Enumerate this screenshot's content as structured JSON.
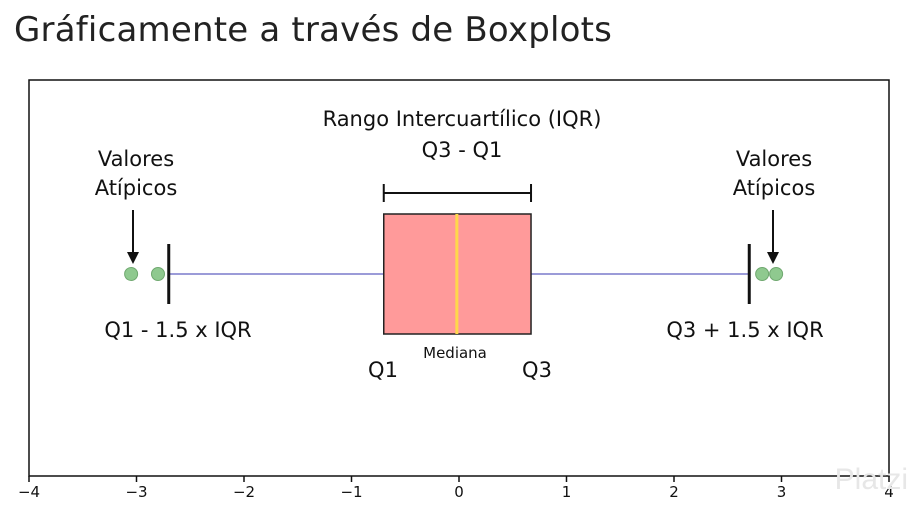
{
  "title": "Gráficamente a través de Boxplots",
  "labels": {
    "iqr_line1": "Rango Intercuartílico (IQR)",
    "iqr_line2": "Q3 - Q1",
    "outliers_left_1": "Valores",
    "outliers_left_2": "Atípicos",
    "outliers_right_1": "Valores",
    "outliers_right_2": "Atípicos",
    "lower_fence": "Q1 - 1.5 x IQR",
    "upper_fence": "Q3 + 1.5 x IQR",
    "median": "Mediana",
    "q1": "Q1",
    "q3": "Q3"
  },
  "axis": {
    "ticks": [
      "−4",
      "−3",
      "−2",
      "−1",
      "0",
      "1",
      "2",
      "3",
      "4"
    ]
  },
  "boxplot": {
    "q1": -0.7,
    "median": -0.02,
    "q3": 0.67,
    "lower_whisker": -2.7,
    "upper_whisker": 2.7,
    "outliers": [
      -3.05,
      -2.8,
      2.82,
      2.95
    ],
    "box_color": "#ff9a9a",
    "median_color": "#ffd84a",
    "whisker_color": "#9b9bd8",
    "outlier_color": "#8fc98f"
  },
  "watermark": "Platzi"
}
